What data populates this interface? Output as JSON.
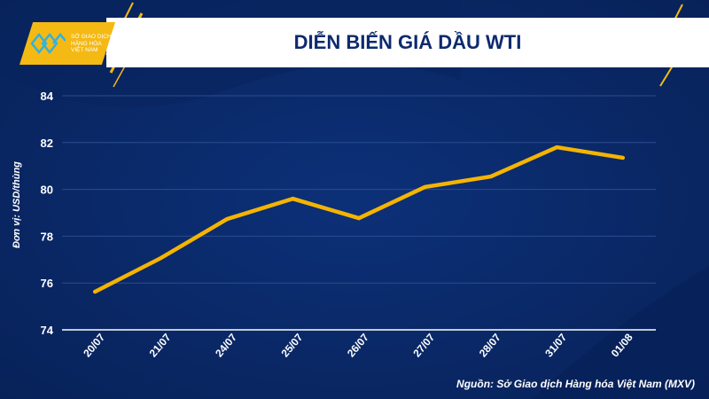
{
  "header": {
    "title": "DIỄN BIẾN GIÁ DẦU WTI",
    "logo_text": [
      "SỞ GIAO DỊCH",
      "HÀNG HÓA",
      "VIỆT NAM"
    ]
  },
  "source": "Nguồn: Sở Giao dịch Hàng hóa Việt Nam (MXV)",
  "colors": {
    "background": "#0b2a6b",
    "line": "#f5b400",
    "accent": "#f5b914"
  },
  "chart_data": {
    "type": "line",
    "title": "DIỄN BIẾN GIÁ DẦU WTI",
    "xlabel": "",
    "ylabel": "Đơn vị: USD/thùng",
    "categories": [
      "20/07",
      "21/07",
      "24/07",
      "25/07",
      "26/07",
      "27/07",
      "28/07",
      "31/07",
      "01/08"
    ],
    "series": [
      {
        "name": "WTI",
        "values": [
          75.63,
          77.07,
          78.73,
          79.6,
          78.77,
          80.1,
          80.55,
          81.8,
          81.35
        ]
      }
    ],
    "ylim": [
      74,
      84
    ],
    "yticks": [
      "74",
      "76",
      "78",
      "80",
      "82",
      "84"
    ],
    "grid": true
  }
}
